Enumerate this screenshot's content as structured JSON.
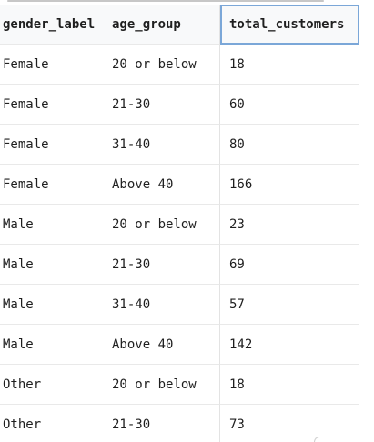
{
  "table": {
    "columns": [
      "gender_label",
      "age_group",
      "total_customers"
    ],
    "rows": [
      [
        "Female",
        "20 or below",
        "18"
      ],
      [
        "Female",
        "21-30",
        "60"
      ],
      [
        "Female",
        "31-40",
        "80"
      ],
      [
        "Female",
        "Above 40",
        "166"
      ],
      [
        "Male",
        "20 or below",
        "23"
      ],
      [
        "Male",
        "21-30",
        "69"
      ],
      [
        "Male",
        "31-40",
        "57"
      ],
      [
        "Male",
        "Above 40",
        "142"
      ],
      [
        "Other",
        "20 or below",
        "18"
      ],
      [
        "Other",
        "21-30",
        "73"
      ]
    ]
  }
}
